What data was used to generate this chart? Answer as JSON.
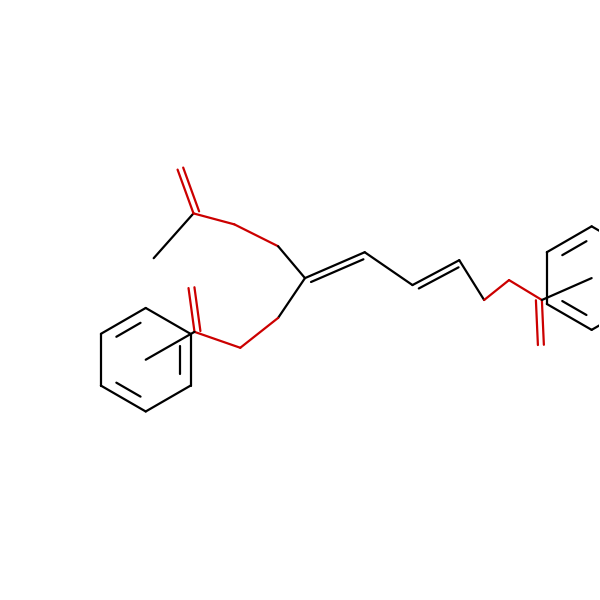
{
  "background_color": "#ffffff",
  "bond_color": "#000000",
  "oxygen_color": "#cc0000",
  "line_width": 1.6,
  "figsize": [
    6.0,
    6.0
  ],
  "dpi": 100
}
